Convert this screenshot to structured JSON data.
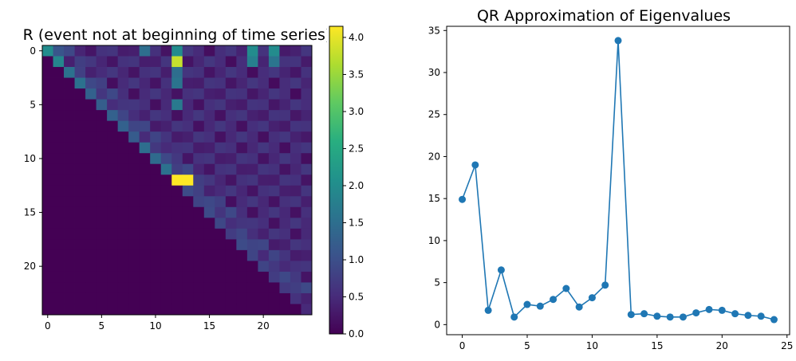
{
  "chart_data": [
    {
      "type": "heatmap",
      "title": "R (event not at beginning of time series)",
      "rows": 25,
      "cols": 25,
      "xticks": [
        0,
        5,
        10,
        15,
        20
      ],
      "yticks": [
        0,
        5,
        10,
        15,
        20
      ],
      "colorbar": {
        "min": 0,
        "max": 4.15,
        "ticks": [
          "0.0",
          "0.5",
          "1.0",
          "1.5",
          "2.0",
          "2.5",
          "3.0",
          "3.5",
          "4.0"
        ],
        "colormap": "viridis"
      },
      "diagonal": [
        2.0,
        1.9,
        1.55,
        1.55,
        1.3,
        1.25,
        1.3,
        1.3,
        1.2,
        1.5,
        1.45,
        1.55,
        4.15,
        0.95,
        0.85,
        0.95,
        0.9,
        0.75,
        0.95,
        0.85,
        0.85,
        0.75,
        0.7,
        0.6,
        0.5
      ],
      "highlights": [
        {
          "row": 0,
          "col": 1,
          "value": 1.1
        },
        {
          "row": 0,
          "col": 9,
          "value": 1.5
        },
        {
          "row": 0,
          "col": 12,
          "value": 2.0
        },
        {
          "row": 0,
          "col": 19,
          "value": 2.0
        },
        {
          "row": 0,
          "col": 21,
          "value": 2.0
        },
        {
          "row": 1,
          "col": 12,
          "value": 3.8
        },
        {
          "row": 1,
          "col": 19,
          "value": 1.8
        },
        {
          "row": 1,
          "col": 21,
          "value": 1.6
        },
        {
          "row": 2,
          "col": 12,
          "value": 1.5
        },
        {
          "row": 3,
          "col": 12,
          "value": 1.6
        },
        {
          "row": 5,
          "col": 12,
          "value": 1.7
        },
        {
          "row": 12,
          "col": 13,
          "value": 4.15
        }
      ]
    },
    {
      "type": "line",
      "title": "QR Approximation of Eigenvalues",
      "x": [
        0,
        1,
        2,
        3,
        4,
        5,
        6,
        7,
        8,
        9,
        10,
        11,
        12,
        13,
        14,
        15,
        16,
        17,
        18,
        19,
        20,
        21,
        22,
        23,
        24
      ],
      "y": [
        14.9,
        19.0,
        1.7,
        6.5,
        0.9,
        2.4,
        2.2,
        3.0,
        4.3,
        2.1,
        3.2,
        4.7,
        33.8,
        1.2,
        1.3,
        1.0,
        0.9,
        0.9,
        1.4,
        1.8,
        1.7,
        1.3,
        1.1,
        1.0,
        0.6
      ],
      "xlim": [
        -1.2,
        25.2
      ],
      "ylim": [
        -1.2,
        35.5
      ],
      "xticks": [
        0,
        5,
        10,
        15,
        20,
        25
      ],
      "yticks": [
        0,
        5,
        10,
        15,
        20,
        25,
        30,
        35
      ],
      "color": "#1f77b4"
    }
  ]
}
